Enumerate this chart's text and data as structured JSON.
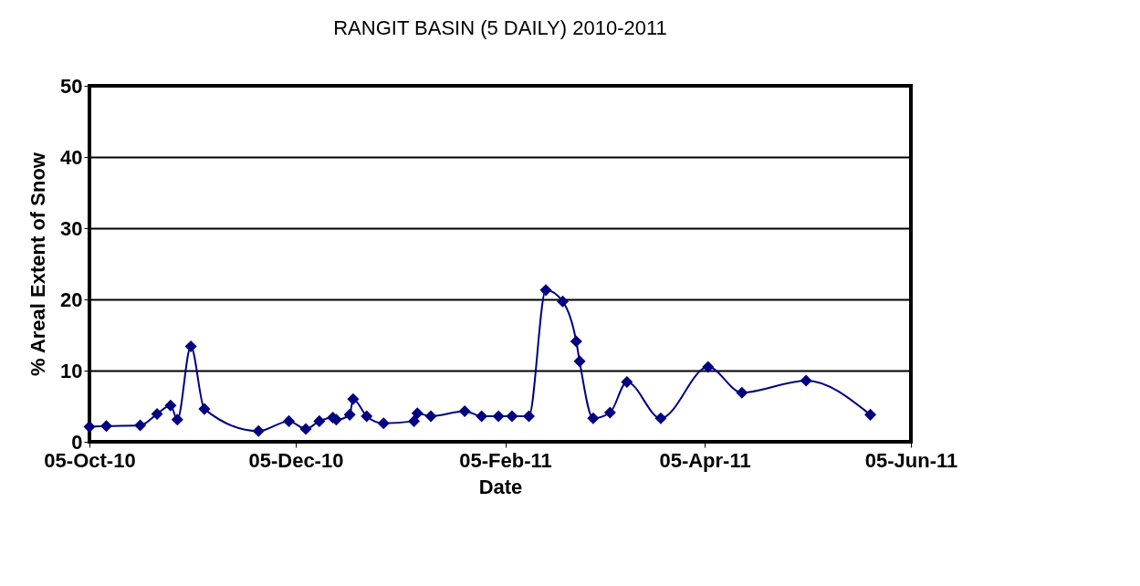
{
  "chart_data": {
    "type": "line",
    "title": "RANGIT BASIN (5 DAILY) 2010-2011",
    "xlabel": "Date",
    "ylabel": "% Areal Extent of Snow",
    "x": [
      "2010-10-05",
      "2010-10-10",
      "2010-10-20",
      "2010-10-25",
      "2010-10-29",
      "2010-10-31",
      "2010-11-04",
      "2010-11-08",
      "2010-11-24",
      "2010-12-03",
      "2010-12-08",
      "2010-12-12",
      "2010-12-16",
      "2010-12-17",
      "2010-12-21",
      "2010-12-22",
      "2010-12-26",
      "2010-12-31",
      "2011-01-09",
      "2011-01-10",
      "2011-01-14",
      "2011-01-24",
      "2011-01-29",
      "2011-02-03",
      "2011-02-07",
      "2011-02-12",
      "2011-02-17",
      "2011-02-22",
      "2011-02-26",
      "2011-02-27",
      "2011-03-03",
      "2011-03-08",
      "2011-03-13",
      "2011-03-23",
      "2011-04-06",
      "2011-04-16",
      "2011-05-05",
      "2011-05-24"
    ],
    "series": [
      {
        "color": "#000080",
        "values": [
          2.1,
          2.2,
          2.3,
          3.9,
          5.1,
          3.1,
          13.4,
          4.6,
          1.5,
          2.9,
          1.8,
          2.9,
          3.4,
          3.1,
          3.8,
          6.0,
          3.6,
          2.6,
          2.9,
          4.0,
          3.6,
          4.3,
          3.6,
          3.6,
          3.6,
          3.6,
          21.3,
          19.7,
          14.1,
          11.3,
          3.3,
          4.1,
          8.4,
          3.3,
          10.5,
          6.9,
          8.6,
          3.8
        ]
      }
    ],
    "xlim": [
      "2010-10-05",
      "2011-06-05"
    ],
    "xticks": [
      {
        "value": "2010-10-05",
        "label": "05-Oct-10"
      },
      {
        "value": "2010-12-05",
        "label": "05-Dec-10"
      },
      {
        "value": "2011-02-05",
        "label": "05-Feb-11"
      },
      {
        "value": "2011-04-05",
        "label": "05-Apr-11"
      },
      {
        "value": "2011-06-05",
        "label": "05-Jun-11"
      }
    ],
    "ylim": [
      0,
      50
    ],
    "yticks": [
      0,
      10,
      20,
      30,
      40,
      50
    ],
    "grid": "y",
    "marker": "diamond",
    "line_style": "solid"
  }
}
